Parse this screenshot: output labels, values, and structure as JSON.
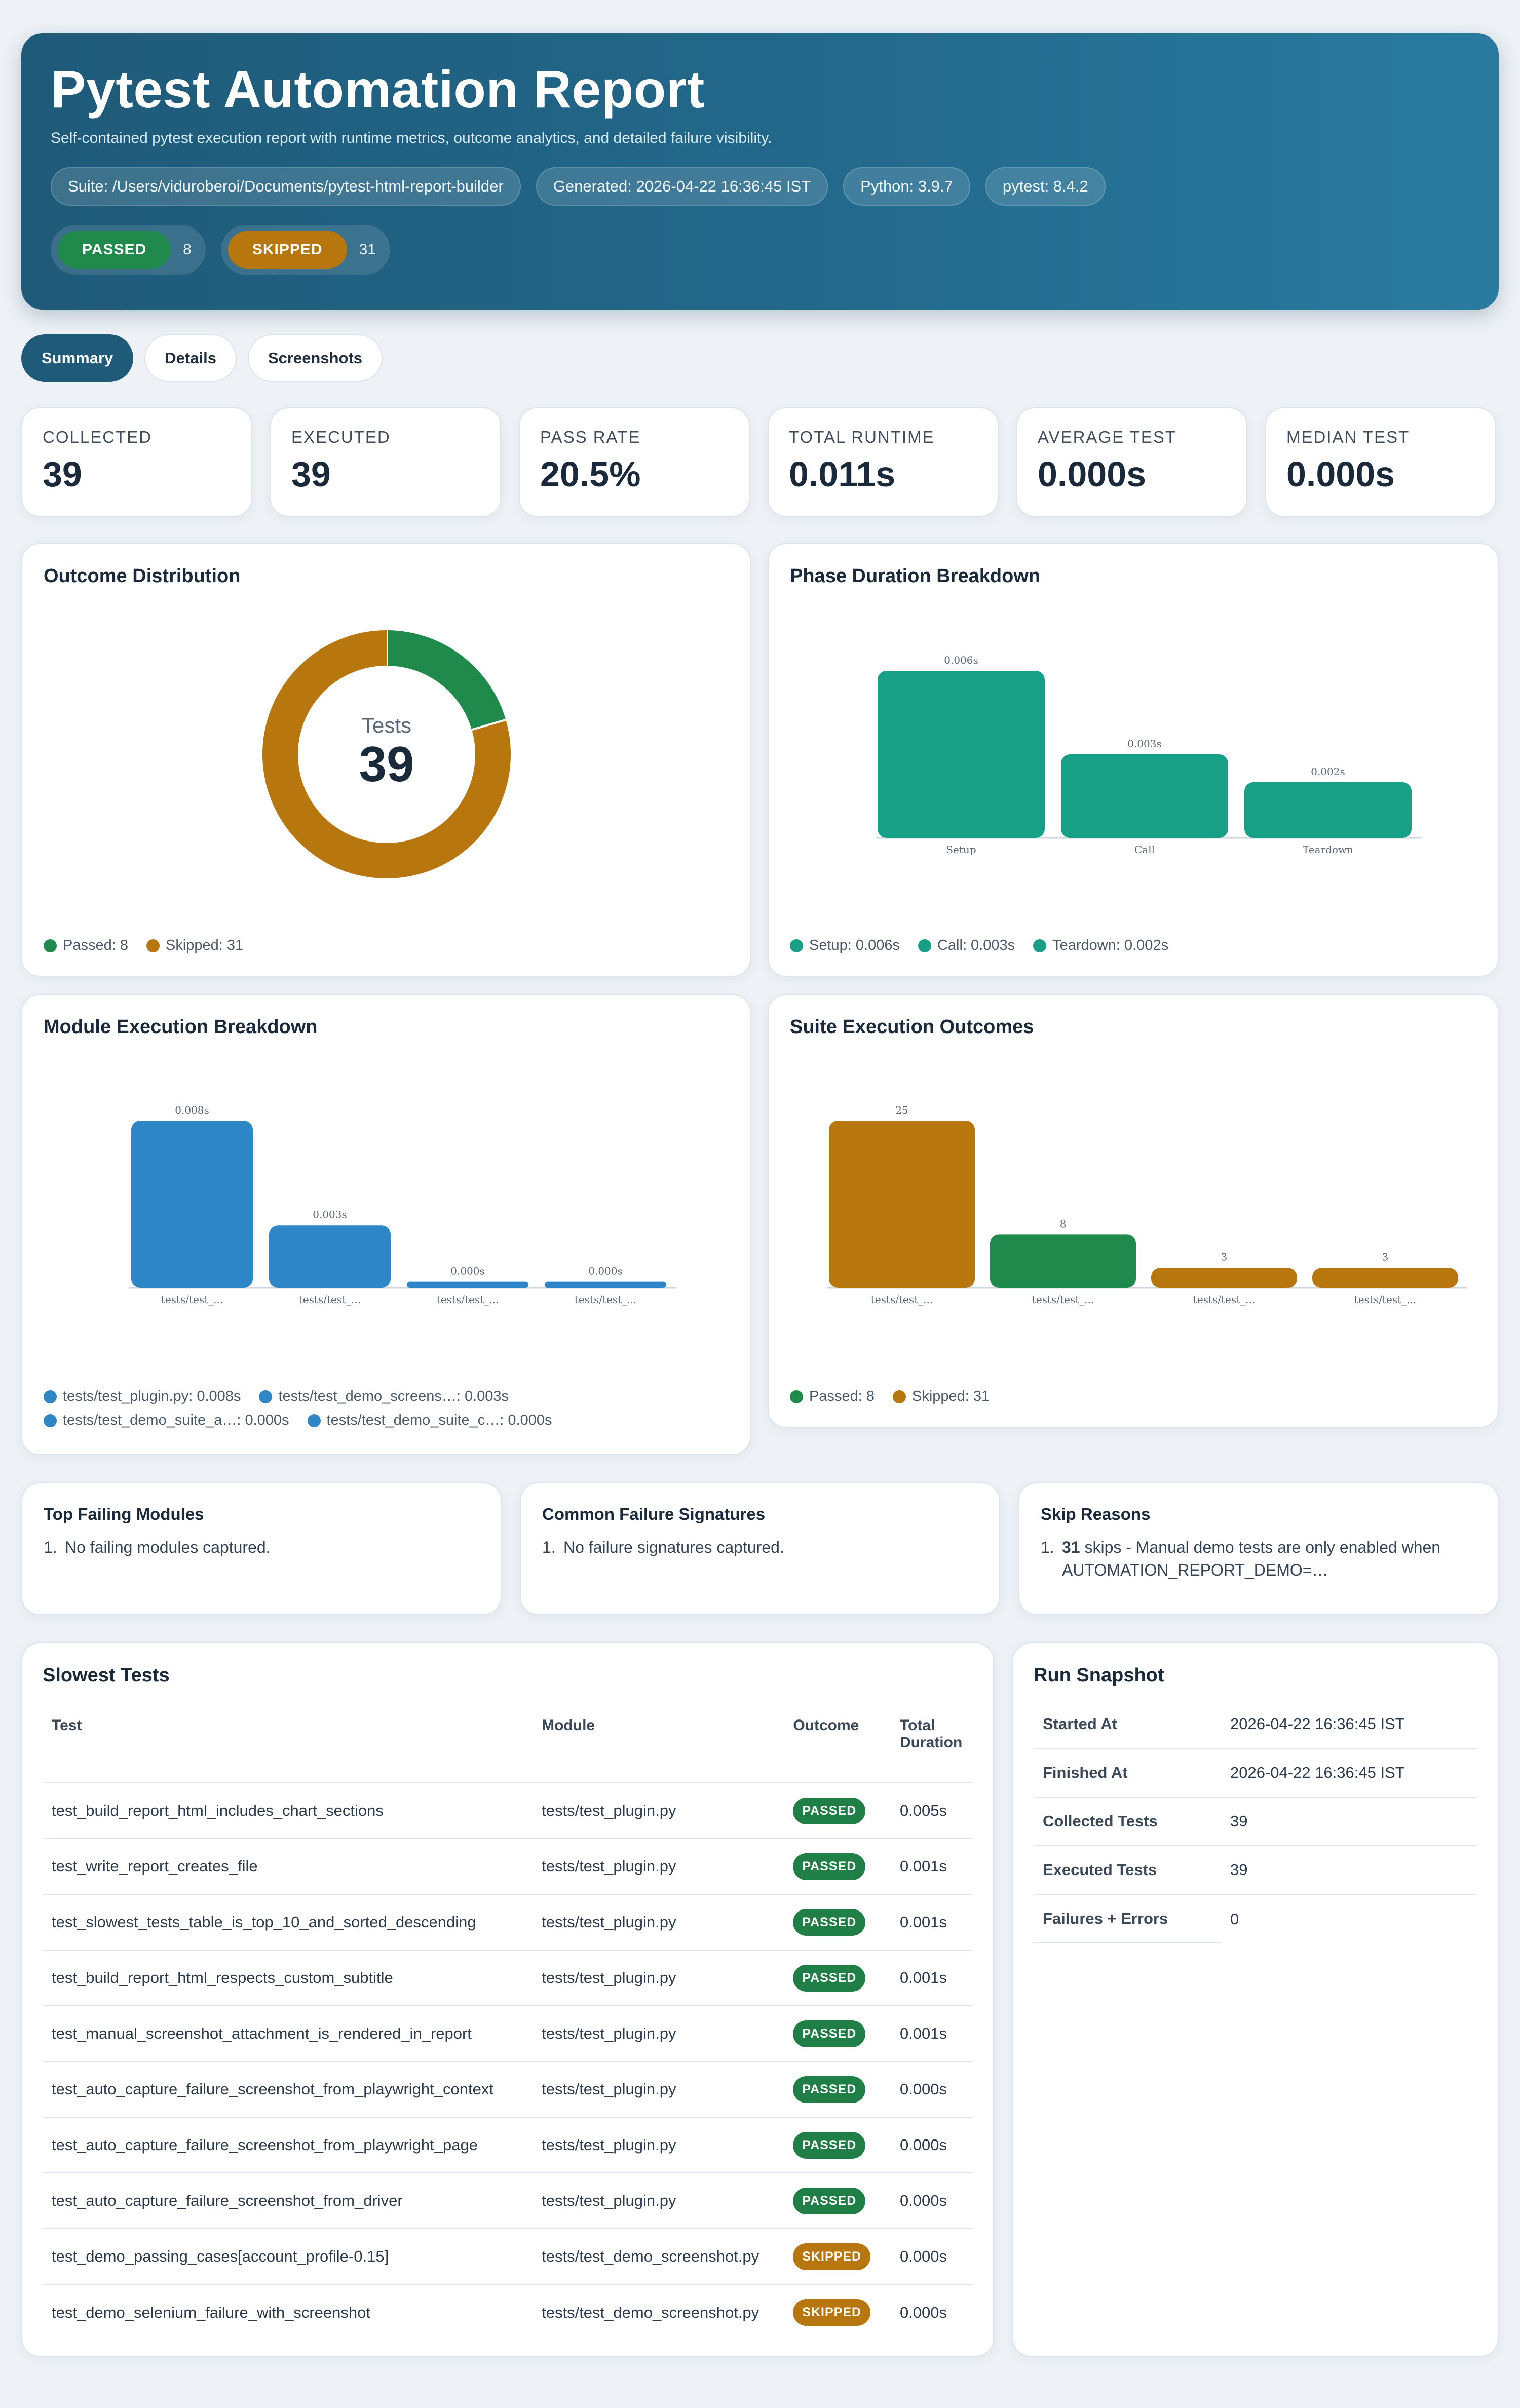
{
  "header": {
    "title": "Pytest Automation Report",
    "subtitle": "Self-contained pytest execution report with runtime metrics, outcome analytics, and detailed failure visibility.",
    "meta": [
      "Suite: /Users/viduroberoi/Documents/pytest-html-report-builder",
      "Generated: 2026-04-22 16:36:45 IST",
      "Python: 3.9.7",
      "pytest: 8.4.2"
    ],
    "status": [
      {
        "label": "PASSED",
        "count": "8",
        "color": "#1f8a4c"
      },
      {
        "label": "SKIPPED",
        "count": "31",
        "color": "#b8760f"
      }
    ]
  },
  "tabs": [
    "Summary",
    "Details",
    "Screenshots"
  ],
  "metrics": [
    {
      "label": "COLLECTED",
      "value": "39"
    },
    {
      "label": "EXECUTED",
      "value": "39"
    },
    {
      "label": "PASS RATE",
      "value": "20.5%"
    },
    {
      "label": "TOTAL RUNTIME",
      "value": "0.011s"
    },
    {
      "label": "AVERAGE TEST",
      "value": "0.000s"
    },
    {
      "label": "MEDIAN TEST",
      "value": "0.000s"
    }
  ],
  "chart_data": [
    {
      "type": "pie",
      "title": "Outcome Distribution",
      "center_label": "Tests",
      "center_value": "39",
      "slices": [
        {
          "name": "Passed",
          "value": 8,
          "color": "#1f8a4c"
        },
        {
          "name": "Skipped",
          "value": 31,
          "color": "#b8760f"
        }
      ],
      "legend": [
        "Passed: 8",
        "Skipped: 31"
      ]
    },
    {
      "type": "bar",
      "title": "Phase Duration Breakdown",
      "categories": [
        "Setup",
        "Call",
        "Teardown"
      ],
      "values": [
        0.006,
        0.003,
        0.002
      ],
      "value_labels": [
        "0.006s",
        "0.003s",
        "0.002s"
      ],
      "color": "#17a085",
      "legend": [
        "Setup: 0.006s",
        "Call: 0.003s",
        "Teardown: 0.002s"
      ]
    },
    {
      "type": "bar",
      "title": "Module Execution Breakdown",
      "categories": [
        "tests/test_...",
        "tests/test_...",
        "tests/test_...",
        "tests/test_..."
      ],
      "values": [
        0.008,
        0.003,
        0.0003,
        0.0003
      ],
      "value_labels": [
        "0.008s",
        "0.003s",
        "0.000s",
        "0.000s"
      ],
      "color": "#2f86c6",
      "legend": [
        "tests/test_plugin.py: 0.008s",
        "tests/test_demo_screens…: 0.003s",
        "tests/test_demo_suite_a…: 0.000s",
        "tests/test_demo_suite_c…: 0.000s"
      ]
    },
    {
      "type": "bar",
      "title": "Suite Execution Outcomes",
      "categories": [
        "tests/test_...",
        "tests/test_...",
        "tests/test_...",
        "tests/test_..."
      ],
      "values": [
        25,
        8,
        3,
        3
      ],
      "value_labels": [
        "25",
        "8",
        "3",
        "3"
      ],
      "colors": [
        "#b8760f",
        "#1f8a4c",
        "#b8760f",
        "#b8760f"
      ],
      "legend": [
        "Passed: 8",
        "Skipped: 31"
      ],
      "legend_colors": [
        "#1f8a4c",
        "#b8760f"
      ]
    }
  ],
  "insights": [
    {
      "title": "Top Failing Modules",
      "items": [
        {
          "num": "1.",
          "text": "No failing modules captured."
        }
      ]
    },
    {
      "title": "Common Failure Signatures",
      "items": [
        {
          "num": "1.",
          "text": "No failure signatures captured."
        }
      ]
    },
    {
      "title": "Skip Reasons",
      "items": [
        {
          "num": "1.",
          "bold": "31",
          "text": " skips - Manual demo tests are only enabled when AUTOMATION_REPORT_DEMO=…"
        }
      ]
    }
  ],
  "slowest": {
    "title": "Slowest Tests",
    "columns": [
      "Test",
      "Module",
      "Outcome",
      "Total Duration"
    ],
    "rows": [
      {
        "test": "test_build_report_html_includes_chart_sections",
        "module": "tests/test_plugin.py",
        "outcome": "PASSED",
        "duration": "0.005s"
      },
      {
        "test": "test_write_report_creates_file",
        "module": "tests/test_plugin.py",
        "outcome": "PASSED",
        "duration": "0.001s"
      },
      {
        "test": "test_slowest_tests_table_is_top_10_and_sorted_descending",
        "module": "tests/test_plugin.py",
        "outcome": "PASSED",
        "duration": "0.001s"
      },
      {
        "test": "test_build_report_html_respects_custom_subtitle",
        "module": "tests/test_plugin.py",
        "outcome": "PASSED",
        "duration": "0.001s"
      },
      {
        "test": "test_manual_screenshot_attachment_is_rendered_in_report",
        "module": "tests/test_plugin.py",
        "outcome": "PASSED",
        "duration": "0.001s"
      },
      {
        "test": "test_auto_capture_failure_screenshot_from_playwright_context",
        "module": "tests/test_plugin.py",
        "outcome": "PASSED",
        "duration": "0.000s"
      },
      {
        "test": "test_auto_capture_failure_screenshot_from_playwright_page",
        "module": "tests/test_plugin.py",
        "outcome": "PASSED",
        "duration": "0.000s"
      },
      {
        "test": "test_auto_capture_failure_screenshot_from_driver",
        "module": "tests/test_plugin.py",
        "outcome": "PASSED",
        "duration": "0.000s"
      },
      {
        "test": "test_demo_passing_cases[account_profile-0.15]",
        "module": "tests/test_demo_screenshot.py",
        "outcome": "SKIPPED",
        "duration": "0.000s"
      },
      {
        "test": "test_demo_selenium_failure_with_screenshot",
        "module": "tests/test_demo_screenshot.py",
        "outcome": "SKIPPED",
        "duration": "0.000s"
      }
    ]
  },
  "snapshot": {
    "title": "Run Snapshot",
    "rows": [
      {
        "key": "Started At",
        "value": "2026-04-22 16:36:45 IST"
      },
      {
        "key": "Finished At",
        "value": "2026-04-22 16:36:45 IST"
      },
      {
        "key": "Collected Tests",
        "value": "39"
      },
      {
        "key": "Executed Tests",
        "value": "39"
      },
      {
        "key": "Failures + Errors",
        "value": "0"
      }
    ]
  }
}
